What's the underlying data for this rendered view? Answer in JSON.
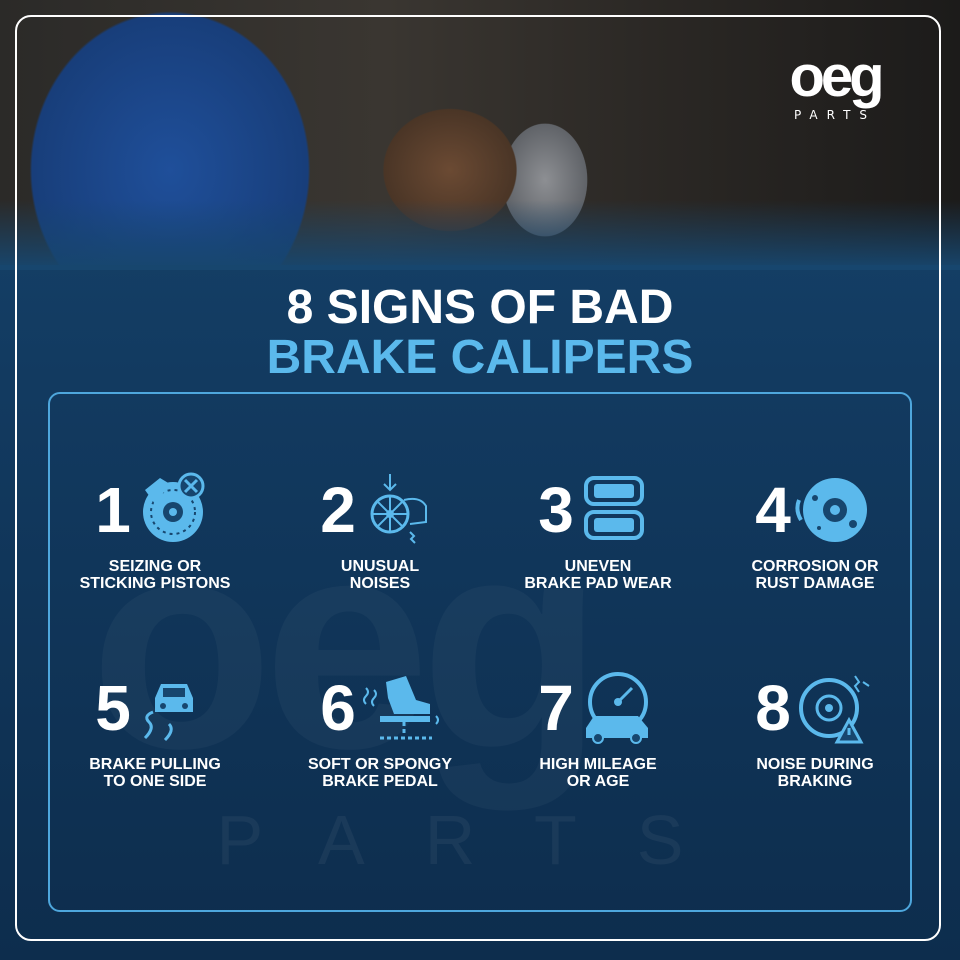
{
  "brand": {
    "logo_text": "OEG",
    "logo_sub": "PARTS",
    "watermark_sub": "PARTS",
    "accent": "#5bb9ec"
  },
  "title": {
    "line1": "8 SIGNS OF BAD",
    "line2": "BRAKE CALIPERS"
  },
  "signs": [
    {
      "number": "1",
      "line1": "SEIZING OR",
      "line2": "STICKING PISTONS",
      "icon": "brake-disc-x-icon"
    },
    {
      "number": "2",
      "line1": "UNUSUAL",
      "line2": "NOISES",
      "icon": "wheel-noise-icon"
    },
    {
      "number": "3",
      "line1": "UNEVEN",
      "line2": "BRAKE PAD WEAR",
      "icon": "brake-pads-icon"
    },
    {
      "number": "4",
      "line1": "CORROSION OR",
      "line2": "RUST DAMAGE",
      "icon": "rusty-disc-icon"
    },
    {
      "number": "5",
      "line1": "BRAKE PULLING",
      "line2": "TO ONE SIDE",
      "icon": "car-skid-icon"
    },
    {
      "number": "6",
      "line1": "SOFT OR SPONGY",
      "line2": "BRAKE PEDAL",
      "icon": "foot-pedal-icon"
    },
    {
      "number": "7",
      "line1": "HIGH MILEAGE",
      "line2": "OR AGE",
      "icon": "odometer-car-icon"
    },
    {
      "number": "8",
      "line1": "NOISE DURING",
      "line2": "BRAKING",
      "icon": "disc-warning-icon"
    }
  ]
}
